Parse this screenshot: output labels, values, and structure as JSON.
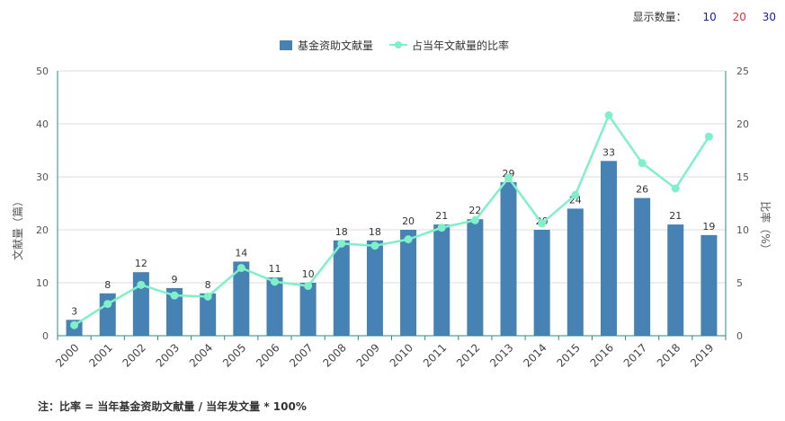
{
  "count_selector": {
    "label": "显示数量：",
    "options": [
      {
        "text": "10",
        "color": "#1a1aa6"
      },
      {
        "text": "20",
        "color": "#e0303a"
      },
      {
        "text": "30",
        "color": "#1a1aa6"
      }
    ]
  },
  "footnote": "注：比率 = 当年基金资助文献量 / 当年发文量 * 100%",
  "chart_data": {
    "type": "bar",
    "categories": [
      "2000",
      "2001",
      "2002",
      "2003",
      "2004",
      "2005",
      "2006",
      "2007",
      "2008",
      "2009",
      "2010",
      "2011",
      "2012",
      "2013",
      "2014",
      "2015",
      "2016",
      "2017",
      "2018",
      "2019"
    ],
    "series": [
      {
        "name": "基金资助文献量",
        "type": "bar",
        "axis": "left",
        "color": "#4682b4",
        "values": [
          3,
          8,
          12,
          9,
          8,
          14,
          11,
          10,
          18,
          18,
          20,
          21,
          22,
          29,
          20,
          24,
          33,
          26,
          21,
          19
        ]
      },
      {
        "name": "占当年文献量的比率",
        "type": "line",
        "axis": "right",
        "color": "#7ff0c8",
        "values": [
          1.0,
          3.0,
          4.8,
          3.8,
          3.7,
          6.4,
          5.1,
          4.7,
          8.7,
          8.5,
          9.1,
          10.2,
          10.9,
          14.9,
          10.6,
          13.3,
          20.8,
          16.3,
          13.9,
          18.8
        ]
      }
    ],
    "y_left": {
      "label": "文献量（篇）",
      "min": 0,
      "max": 50,
      "ticks": [
        0,
        10,
        20,
        30,
        40,
        50
      ]
    },
    "y_right": {
      "label": "比率（%）",
      "min": 0,
      "max": 25,
      "ticks": [
        0,
        5,
        10,
        15,
        20,
        25
      ]
    },
    "grid": true,
    "legend_position": "top-center"
  }
}
